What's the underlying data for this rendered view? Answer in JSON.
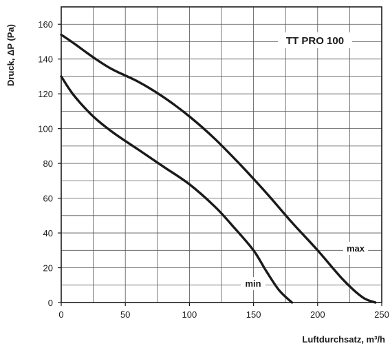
{
  "chart_data": {
    "type": "line",
    "title": "TT PRO 100",
    "xlabel": "Luftdurchsatz, m³/h",
    "ylabel": "Druck, ΔP (Pa)",
    "xlim": [
      0,
      250
    ],
    "ylim": [
      0,
      170
    ],
    "grid": true,
    "x_ticks": [
      0,
      50,
      100,
      150,
      200,
      250
    ],
    "y_ticks": [
      0,
      20,
      40,
      60,
      80,
      100,
      120,
      140,
      160
    ],
    "series": [
      {
        "name": "max",
        "x": [
          0,
          10,
          25,
          40,
          60,
          80,
          100,
          120,
          140,
          160,
          180,
          200,
          220,
          235,
          245
        ],
        "y": [
          154,
          149,
          141,
          134,
          127,
          118,
          107,
          94,
          79,
          63,
          46,
          30,
          13,
          3,
          0
        ]
      },
      {
        "name": "min",
        "x": [
          0,
          10,
          25,
          40,
          60,
          80,
          100,
          120,
          135,
          150,
          160,
          170,
          180
        ],
        "y": [
          130,
          119,
          107,
          98,
          88,
          78,
          68,
          55,
          43,
          30,
          18,
          7,
          0
        ]
      }
    ]
  }
}
